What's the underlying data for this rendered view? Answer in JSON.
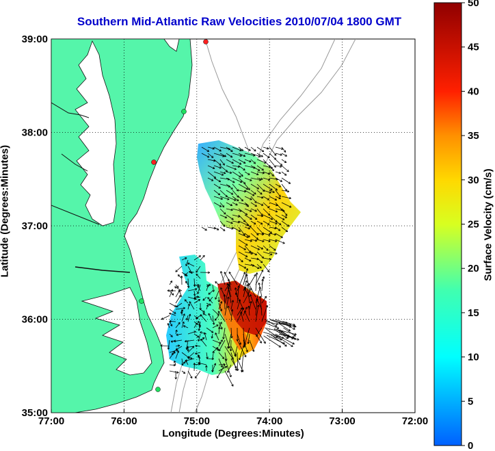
{
  "title": "Southern Mid-Atlantic Raw Velocities 2010/07/04 1800 GMT",
  "xlabel": "Longitude (Degrees:Minutes)",
  "ylabel": "Latitude (Degrees:Minutes)",
  "colorbar": {
    "label": "Surface Velocity (cm/s)",
    "ticks": [
      "0",
      "5",
      "10",
      "15",
      "20",
      "25",
      "30",
      "35",
      "40",
      "45",
      "50"
    ],
    "range": [
      0,
      50
    ]
  },
  "map": {
    "x_ticks": [
      "77:00",
      "76:00",
      "75:00",
      "74:00",
      "73:00",
      "72:00"
    ],
    "y_ticks": [
      "39:00",
      "38:00",
      "37:00",
      "36:00",
      "35:00"
    ],
    "lon_range": [
      -77,
      -72
    ],
    "lat_range": [
      35,
      39
    ],
    "land_color": "#55f5aa",
    "grid": true
  }
}
